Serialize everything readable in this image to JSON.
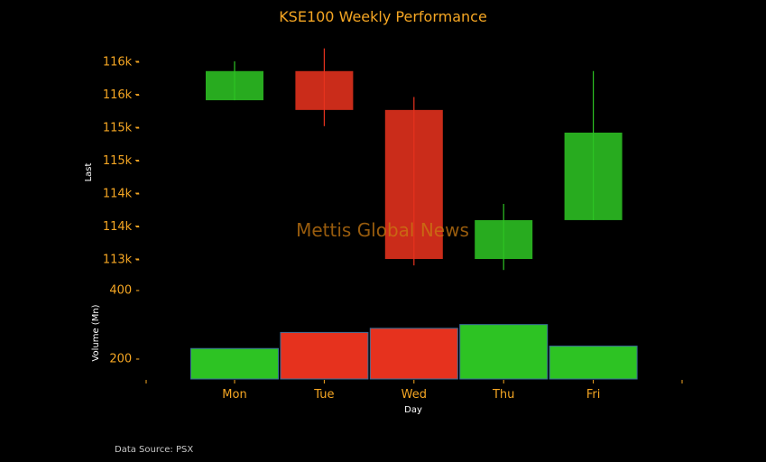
{
  "title": "KSE100 Weekly Performance",
  "source_note": "Data Source: PSX",
  "watermark": "Mettis Global News",
  "colors": {
    "up": "#2dc323",
    "down": "#e6321e",
    "accent": "#f5a623",
    "background": "#000000"
  },
  "chart_data": [
    {
      "type": "candlestick",
      "ylabel": "Last",
      "ytick_labels": [
        "113k",
        "114k",
        "114k",
        "115k",
        "115k",
        "116k",
        "116k"
      ],
      "ylim": [
        112800,
        116250
      ],
      "categories": [
        "Mon",
        "Tue",
        "Wed",
        "Thu",
        "Fri"
      ],
      "ohlc": [
        {
          "day": "Mon",
          "open": 115400,
          "high": 116000,
          "low": 115400,
          "close": 115850,
          "direction": "up"
        },
        {
          "day": "Tue",
          "open": 115850,
          "high": 116200,
          "low": 115000,
          "close": 115250,
          "direction": "down"
        },
        {
          "day": "Wed",
          "open": 115250,
          "high": 115450,
          "low": 112850,
          "close": 112950,
          "direction": "down"
        },
        {
          "day": "Thu",
          "open": 112950,
          "high": 113800,
          "low": 112780,
          "close": 113550,
          "direction": "up"
        },
        {
          "day": "Fri",
          "open": 113550,
          "high": 115850,
          "low": 113550,
          "close": 114900,
          "direction": "up"
        }
      ]
    },
    {
      "type": "bar",
      "ylabel": "Volume (Mn)",
      "xlabel": "Day",
      "categories": [
        "Mon",
        "Tue",
        "Wed",
        "Thu",
        "Fri"
      ],
      "ytick_labels": [
        "200",
        "400"
      ],
      "ylim": [
        130,
        400
      ],
      "values": [
        228,
        275,
        287,
        298,
        235
      ],
      "directions": [
        "up",
        "down",
        "down",
        "up",
        "up"
      ]
    }
  ]
}
